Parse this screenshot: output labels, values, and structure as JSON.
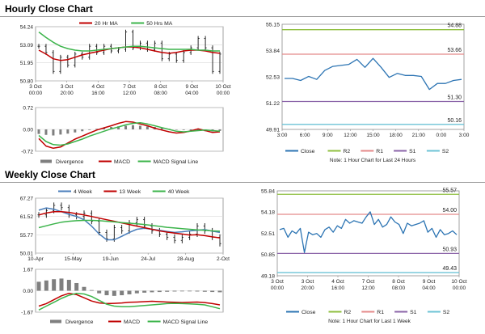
{
  "hourly_section": {
    "title": "Hourly Close Chart"
  },
  "weekly_section": {
    "title": "Weekly Close Chart"
  },
  "colors": {
    "ma_short": "#c00000",
    "ma_long": "#3cb44b",
    "price": "#111111",
    "close": "#2c74b3",
    "r2": "#8fbf3f",
    "r1": "#e48a8a",
    "s1": "#8b64a8",
    "s2": "#6cc3d6",
    "hist": "#7f7f7f",
    "macd": "#c00000",
    "signal": "#3cb44b",
    "week4": "#4a7ebb"
  },
  "chart_data": [
    {
      "id": "hourly_price",
      "type": "line",
      "ylim": [
        50.8,
        54.24
      ],
      "y_ticks": [
        "54.24",
        "53.09",
        "51.95",
        "50.80"
      ],
      "x_ticks": [
        [
          "3 Oct",
          "00:00"
        ],
        [
          "3 Oct",
          "20:00"
        ],
        [
          "4 Oct",
          "16:00"
        ],
        [
          "7 Oct",
          "12:00"
        ],
        [
          "8 Oct",
          "08:00"
        ],
        [
          "9 Oct",
          "04:00"
        ],
        [
          "10 Oct",
          "00:00"
        ]
      ],
      "series": [
        {
          "name": "20 Hr MA",
          "color_key": "ma_short",
          "values": [
            52.75,
            52.5,
            52.2,
            52.1,
            52.15,
            52.3,
            52.45,
            52.55,
            52.65,
            52.75,
            52.85,
            52.9,
            52.95,
            52.95,
            52.9,
            52.8,
            52.7,
            52.6,
            52.55,
            52.6,
            52.7,
            52.75,
            52.75,
            52.7,
            52.6,
            52.55
          ]
        },
        {
          "name": "50 Hrs MA",
          "color_key": "ma_long",
          "values": [
            53.9,
            53.55,
            53.25,
            53.0,
            52.85,
            52.75,
            52.7,
            52.7,
            52.75,
            52.8,
            52.85,
            52.9,
            52.95,
            53.0,
            53.0,
            52.95,
            52.9,
            52.85,
            52.8,
            52.8,
            52.8,
            52.8,
            52.75,
            52.75,
            52.7,
            52.7
          ]
        },
        {
          "name": "Close",
          "legend": false,
          "color_key": "price",
          "values": [
            53.0,
            52.6,
            51.4,
            52.3,
            51.8,
            52.5,
            52.3,
            53.0,
            52.6,
            53.0,
            52.7,
            52.8,
            53.9,
            52.9,
            53.2,
            52.8,
            53.2,
            52.2,
            52.5,
            52.1,
            52.6,
            52.9,
            53.5,
            52.9,
            51.4,
            52.5
          ]
        }
      ]
    },
    {
      "id": "hourly_macd",
      "type": "line",
      "ylim": [
        -0.72,
        0.72
      ],
      "y_ticks": [
        "0.72",
        "0.00",
        "-0.72"
      ],
      "series": [
        {
          "name": "Divergence",
          "kind": "bar",
          "color_key": "hist",
          "values": [
            -0.15,
            -0.18,
            -0.2,
            -0.17,
            -0.14,
            -0.1,
            -0.06,
            -0.02,
            0.02,
            0.05,
            0.08,
            0.1,
            0.12,
            0.14,
            0.12,
            0.1,
            0.08,
            0.05,
            0.02,
            0.0,
            -0.02,
            -0.04,
            -0.05,
            -0.06,
            -0.07,
            -0.05
          ]
        },
        {
          "name": "MACD",
          "color_key": "macd",
          "values": [
            -0.3,
            -0.55,
            -0.62,
            -0.58,
            -0.45,
            -0.32,
            -0.22,
            -0.12,
            -0.02,
            0.05,
            0.12,
            0.2,
            0.26,
            0.24,
            0.18,
            0.12,
            0.04,
            -0.02,
            -0.08,
            -0.12,
            -0.1,
            -0.05,
            0.02,
            -0.04,
            -0.1,
            -0.08
          ]
        },
        {
          "name": "MACD Signal Line",
          "color_key": "signal",
          "values": [
            -0.2,
            -0.4,
            -0.5,
            -0.52,
            -0.48,
            -0.4,
            -0.32,
            -0.22,
            -0.14,
            -0.06,
            0.02,
            0.08,
            0.15,
            0.2,
            0.22,
            0.18,
            0.12,
            0.06,
            0.0,
            -0.06,
            -0.08,
            -0.06,
            -0.04,
            -0.02,
            -0.04,
            -0.06
          ]
        }
      ]
    },
    {
      "id": "hourly_pivot",
      "type": "line",
      "ylim": [
        49.91,
        55.15
      ],
      "y_ticks": [
        "55.15",
        "53.84",
        "52.53",
        "51.22",
        "49.91"
      ],
      "x_ticks": [
        "3:00",
        "6:00",
        "9:00",
        "12:00",
        "15:00",
        "18:00",
        "21:00",
        "0:00",
        "3:00"
      ],
      "levels": [
        {
          "name": "R2",
          "value": 54.88,
          "label": "54.88",
          "color_key": "r2"
        },
        {
          "name": "R1",
          "value": 53.66,
          "label": "53.66",
          "color_key": "r1"
        },
        {
          "name": "S1",
          "value": 51.3,
          "label": "51.30",
          "color_key": "s1"
        },
        {
          "name": "S2",
          "value": 50.16,
          "label": "50.16",
          "color_key": "s2"
        }
      ],
      "series": [
        {
          "name": "Close",
          "color_key": "close",
          "values": [
            52.45,
            52.45,
            52.35,
            52.55,
            52.4,
            52.85,
            53.05,
            53.1,
            53.15,
            53.4,
            53.0,
            53.45,
            53.0,
            52.5,
            52.7,
            52.6,
            52.6,
            52.55,
            51.9,
            52.2,
            52.2,
            52.35,
            52.4
          ]
        }
      ],
      "note": "Note: 1 Hour Chart for Last 24 Hours"
    },
    {
      "id": "weekly_price",
      "type": "line",
      "ylim": [
        50.01,
        67.27
      ],
      "y_ticks": [
        "67.27",
        "61.52",
        "55.77",
        "50.01"
      ],
      "x_ticks": [
        "10-Apr",
        "15-May",
        "19-Jun",
        "24-Jul",
        "28-Aug",
        "2-Oct"
      ],
      "series": [
        {
          "name": "4 Week",
          "color_key": "week4",
          "values": [
            63.5,
            64.2,
            63.8,
            63.0,
            62.2,
            61.5,
            60.5,
            58.5,
            56.0,
            54.2,
            54.2,
            55.3,
            56.5,
            57.5,
            57.8,
            57.5,
            57.2,
            56.8,
            56.5,
            56.7,
            57.0,
            57.2,
            57.4,
            56.9,
            56.5
          ]
        },
        {
          "name": "13 Week",
          "color_key": "ma_short",
          "values": [
            62.0,
            62.6,
            63.0,
            63.0,
            62.8,
            62.4,
            62.0,
            61.5,
            61.0,
            60.5,
            60.0,
            59.5,
            59.0,
            58.5,
            58.0,
            57.5,
            57.0,
            56.6,
            56.3,
            56.0,
            55.7,
            55.8,
            55.5,
            55.1,
            54.8
          ]
        },
        {
          "name": "40 Week",
          "color_key": "ma_long",
          "values": [
            58.0,
            58.6,
            59.2,
            59.7,
            60.0,
            60.2,
            60.3,
            60.3,
            60.2,
            60.0,
            59.8,
            59.6,
            59.4,
            59.2,
            59.0,
            58.7,
            58.4,
            58.1,
            57.9,
            57.7,
            57.5,
            57.3,
            57.2,
            57.0,
            56.9
          ]
        },
        {
          "name": "Close",
          "legend": false,
          "color_key": "price",
          "values": [
            62.0,
            63.4,
            65.0,
            64.3,
            62.0,
            61.5,
            62.5,
            60.0,
            56.5,
            54.5,
            58.0,
            57.0,
            59.5,
            60.5,
            58.5,
            57.0,
            56.0,
            55.0,
            54.0,
            55.0,
            56.0,
            58.5,
            57.0,
            55.0,
            53.0
          ]
        }
      ]
    },
    {
      "id": "weekly_macd",
      "type": "line",
      "ylim": [
        -1.67,
        1.67
      ],
      "y_ticks": [
        "1.67",
        "0.00",
        "-1.67"
      ],
      "series": [
        {
          "name": "Divergence",
          "kind": "bar",
          "color_key": "hist",
          "values": [
            0.7,
            0.8,
            0.9,
            0.95,
            0.85,
            0.6,
            0.3,
            0.05,
            -0.2,
            -0.35,
            -0.4,
            -0.35,
            -0.28,
            -0.2,
            -0.15,
            -0.12,
            -0.1,
            -0.08,
            -0.06,
            -0.05,
            -0.05,
            -0.06,
            -0.08,
            -0.1,
            -0.12
          ]
        },
        {
          "name": "MACD",
          "color_key": "macd",
          "values": [
            -1.2,
            -1.0,
            -0.7,
            -0.4,
            -0.2,
            -0.3,
            -0.55,
            -0.8,
            -0.95,
            -1.0,
            -0.98,
            -0.95,
            -0.9,
            -0.88,
            -0.85,
            -0.82,
            -0.85,
            -0.88,
            -0.9,
            -0.92,
            -0.9,
            -0.88,
            -0.92,
            -1.0,
            -1.1
          ]
        },
        {
          "name": "MACD Signal Line",
          "color_key": "signal",
          "values": [
            -1.5,
            -1.2,
            -0.9,
            -0.6,
            -0.35,
            -0.2,
            -0.25,
            -0.45,
            -0.75,
            -1.05,
            -1.2,
            -1.25,
            -1.25,
            -1.2,
            -1.15,
            -1.1,
            -1.05,
            -1.0,
            -0.98,
            -1.0,
            -1.02,
            -1.05,
            -1.1,
            -1.25,
            -1.4
          ]
        }
      ]
    },
    {
      "id": "weekly_pivot",
      "type": "line",
      "ylim": [
        49.18,
        55.84
      ],
      "y_ticks": [
        "55.84",
        "54.18",
        "52.51",
        "50.85",
        "49.18"
      ],
      "x_ticks": [
        [
          "3 Oct",
          "00:00"
        ],
        [
          "3 Oct",
          "20:00"
        ],
        [
          "4 Oct",
          "16:00"
        ],
        [
          "7 Oct",
          "12:00"
        ],
        [
          "8 Oct",
          "08:00"
        ],
        [
          "9 Oct",
          "04:00"
        ],
        [
          "10 Oct",
          "00:00"
        ]
      ],
      "levels": [
        {
          "name": "R2",
          "value": 55.57,
          "label": "55.57",
          "color_key": "r2"
        },
        {
          "name": "R1",
          "value": 54.0,
          "label": "54.00",
          "color_key": "r1"
        },
        {
          "name": "S1",
          "value": 50.93,
          "label": "50.93",
          "color_key": "s1"
        },
        {
          "name": "S2",
          "value": 49.43,
          "label": "49.43",
          "color_key": "s2"
        }
      ],
      "series": [
        {
          "name": "Close",
          "color_key": "close",
          "values": [
            52.8,
            52.9,
            52.2,
            52.7,
            52.5,
            52.9,
            51.0,
            52.6,
            52.4,
            52.5,
            52.2,
            52.8,
            53.0,
            52.6,
            53.1,
            52.9,
            53.6,
            53.3,
            53.5,
            53.4,
            53.3,
            53.8,
            54.2,
            53.2,
            53.6,
            53.0,
            53.2,
            53.8,
            53.4,
            53.2,
            52.5,
            53.3,
            53.1,
            53.2,
            53.3,
            53.5,
            52.6,
            52.9,
            52.2,
            52.8,
            52.4,
            52.5,
            52.7,
            52.4
          ]
        }
      ],
      "note": "Note: 1 Hour Chart for Last 1 Week"
    }
  ]
}
